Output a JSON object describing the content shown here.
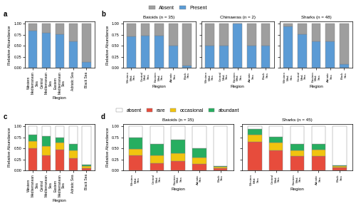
{
  "chart_data": [
    {
      "type": "bar",
      "stacked": true,
      "annotations": [
        "a"
      ],
      "legend": "upper center",
      "categories": [
        "Western\nMediterranean\nSea",
        "Central\nMediterranean\nSea",
        "Eastern\nMediterranean\nSea",
        "Adriatic Sea",
        "Black Sea"
      ],
      "x_label": "Region",
      "y_label": "Relative Abundance",
      "ylim": [
        0,
        1.05
      ],
      "yticks": [
        {
          "value": 0,
          "label": "0.00"
        },
        {
          "value": 0.25,
          "label": "0.25"
        },
        {
          "value": 0.5,
          "label": "0.50"
        },
        {
          "value": 0.75,
          "label": "0.75"
        },
        {
          "value": 1,
          "label": "1.00"
        }
      ],
      "series": [
        {
          "name": "Present",
          "color": "#5b9bd5",
          "values": [
            0.84,
            0.8,
            0.77,
            0.6,
            0.13
          ]
        },
        {
          "name": "Absent",
          "color": "#9e9e9e",
          "values": [
            0.16,
            0.2,
            0.23,
            0.4,
            0.87
          ]
        }
      ]
    },
    {
      "type": "bar",
      "stacked": true,
      "annotations": [
        "b"
      ],
      "title": "Batoids (n = 35)",
      "categories": [
        "Western\nMed.\nSea",
        "Central\nMed.\nSea",
        "Eastern\nMed.\nSea",
        "Adriatic\nSea",
        "Black\nSea"
      ],
      "x_label": "Region",
      "y_label": "Relative Abundance",
      "ylim": [
        0,
        1.05
      ],
      "yticks": [
        {
          "value": 0,
          "label": "0.00"
        },
        {
          "value": 0.25,
          "label": "0.25"
        },
        {
          "value": 0.5,
          "label": "0.50"
        },
        {
          "value": 0.75,
          "label": "0.75"
        },
        {
          "value": 1,
          "label": "1.00"
        }
      ],
      "series": [
        {
          "name": "Present",
          "color": "#5b9bd5",
          "values": [
            0.71,
            0.74,
            0.74,
            0.51,
            0.06
          ]
        },
        {
          "name": "Absent",
          "color": "#9e9e9e",
          "values": [
            0.29,
            0.26,
            0.26,
            0.49,
            0.94
          ]
        }
      ]
    },
    {
      "type": "bar",
      "stacked": true,
      "title": "Chimaeras (n = 2)",
      "tick_labels": "x",
      "categories": [
        "Western\nMed.\nSea",
        "Central\nMed.\nSea",
        "Eastern\nMed.\nSea",
        "Adriatic\nSea",
        "Black\nSea"
      ],
      "x_label": "Region",
      "ylim": [
        0,
        1.05
      ],
      "yticks": [
        0,
        0.25,
        0.5,
        0.75,
        1
      ],
      "series": [
        {
          "name": "Present",
          "color": "#5b9bd5",
          "values": [
            0.5,
            0.5,
            1.0,
            0.5,
            0.5
          ]
        },
        {
          "name": "Absent",
          "color": "#9e9e9e",
          "values": [
            0.5,
            0.5,
            0.0,
            0.5,
            0.5
          ]
        }
      ]
    },
    {
      "type": "bar",
      "stacked": true,
      "title": "Sharks (n = 48)",
      "tick_labels": "x",
      "categories": [
        "Western\nMed.\nSea",
        "Central\nMed.\nSea",
        "Eastern\nMed.\nSea",
        "Adriatic\nSea",
        "Black\nSea"
      ],
      "x_label": "Region",
      "ylim": [
        0,
        1.05
      ],
      "yticks": [
        0,
        0.25,
        0.5,
        0.75,
        1
      ],
      "series": [
        {
          "name": "Present",
          "color": "#5b9bd5",
          "values": [
            0.94,
            0.77,
            0.6,
            0.6,
            0.08
          ]
        },
        {
          "name": "Absent",
          "color": "#9e9e9e",
          "values": [
            0.06,
            0.23,
            0.4,
            0.4,
            0.92
          ]
        }
      ]
    },
    {
      "type": "bar",
      "stacked": true,
      "annotations": [
        "c"
      ],
      "legend": "upper center",
      "categories": [
        "Western\nMediterranean\nSea",
        "Central\nMediterranean\nSea",
        "Eastern\nMediterranean\nSea",
        "Adriatic Sea",
        "Black Sea"
      ],
      "x_label": "Region",
      "y_label": "Relative Abundance",
      "ylim": [
        0,
        1.05
      ],
      "yticks": [
        {
          "value": 0,
          "label": "0.00"
        },
        {
          "value": 0.25,
          "label": "0.25"
        },
        {
          "value": 0.5,
          "label": "0.50"
        },
        {
          "value": 0.75,
          "label": "0.75"
        },
        {
          "value": 1,
          "label": "1.00"
        }
      ],
      "series": [
        {
          "name": "rare",
          "color": "#e74c3c",
          "values": [
            0.5,
            0.35,
            0.48,
            0.28,
            0.06
          ]
        },
        {
          "name": "occasional",
          "color": "#f1c40f",
          "values": [
            0.17,
            0.2,
            0.15,
            0.17,
            0.04
          ]
        },
        {
          "name": "abundant",
          "color": "#27ae60",
          "values": [
            0.15,
            0.23,
            0.12,
            0.15,
            0.03
          ]
        },
        {
          "name": "absent",
          "color": "#ffffff",
          "values": [
            0.18,
            0.22,
            0.25,
            0.4,
            0.87
          ]
        }
      ]
    },
    {
      "type": "bar",
      "stacked": true,
      "annotations": [
        "d"
      ],
      "title": "Batoids (n = 35)",
      "categories": [
        "Western\nMed.\nSea",
        "Central\nMed.\nSea",
        "Eastern\nMed.\nSea",
        "Adriatic\nSea",
        "Black\nSea"
      ],
      "x_label": "Region",
      "y_label": "Relative Abundance",
      "ylim": [
        0,
        1.05
      ],
      "yticks": [
        {
          "value": 0,
          "label": "0.00"
        },
        {
          "value": 0.25,
          "label": "0.25"
        },
        {
          "value": 0.5,
          "label": "0.50"
        },
        {
          "value": 0.75,
          "label": "0.75"
        },
        {
          "value": 1,
          "label": "1.00"
        }
      ],
      "series": [
        {
          "name": "rare",
          "color": "#e74c3c",
          "values": [
            0.35,
            0.17,
            0.22,
            0.15,
            0.05
          ]
        },
        {
          "name": "occasional",
          "color": "#f1c40f",
          "values": [
            0.14,
            0.17,
            0.17,
            0.14,
            0.03
          ]
        },
        {
          "name": "abundant",
          "color": "#27ae60",
          "values": [
            0.25,
            0.26,
            0.31,
            0.22,
            0.03
          ]
        },
        {
          "name": "absent",
          "color": "#ffffff",
          "values": [
            0.26,
            0.4,
            0.3,
            0.49,
            0.89
          ]
        }
      ]
    },
    {
      "type": "bar",
      "stacked": true,
      "title": "Sharks (n = 45)",
      "tick_labels": "x",
      "categories": [
        "Western\nMed.\nSea",
        "Central\nMed.\nSea",
        "Eastern\nMed.\nSea",
        "Adriatic\nSea",
        "Black\nSea"
      ],
      "x_label": "Region",
      "ylim": [
        0,
        1.05
      ],
      "yticks": [
        0,
        0.25,
        0.5,
        0.75,
        1
      ],
      "series": [
        {
          "name": "rare",
          "color": "#e74c3c",
          "values": [
            0.65,
            0.46,
            0.33,
            0.33,
            0.07
          ]
        },
        {
          "name": "occasional",
          "color": "#f1c40f",
          "values": [
            0.17,
            0.17,
            0.13,
            0.14,
            0.03
          ]
        },
        {
          "name": "abundant",
          "color": "#27ae60",
          "values": [
            0.12,
            0.14,
            0.14,
            0.13,
            0.02
          ]
        },
        {
          "name": "absent",
          "color": "#ffffff",
          "values": [
            0.06,
            0.23,
            0.4,
            0.4,
            0.88
          ]
        }
      ]
    }
  ]
}
